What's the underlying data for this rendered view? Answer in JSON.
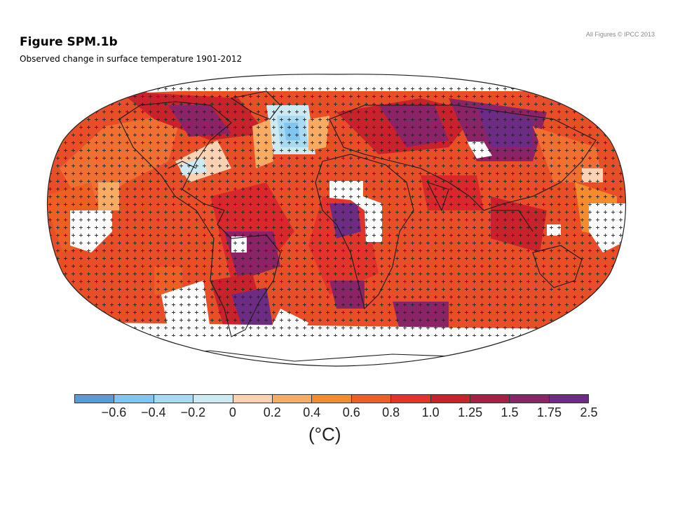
{
  "header": {
    "title": "Figure SPM.1b",
    "subtitle": "Observed change in surface temperature 1901-2012",
    "copyright": "All Figures © IPCC 2013"
  },
  "legend": {
    "unit": "(°C)",
    "tick_labels": [
      "−0.6",
      "−0.4",
      "−0.2",
      "0",
      "0.2",
      "0.4",
      "0.6",
      "0.8",
      "1.0",
      "1.25",
      "1.5",
      "1.75",
      "2.5"
    ],
    "colors": [
      "#5b9bd5",
      "#7fc6f0",
      "#a8daf2",
      "#cde9f2",
      "#fbd3b4",
      "#f8ab63",
      "#f48c2c",
      "#ee5f24",
      "#e2342b",
      "#c8222d",
      "#a81e45",
      "#8a2466",
      "#6c2c83"
    ]
  },
  "map": {
    "projection": "Robinson",
    "background": "#e94f26",
    "no_data_color": "#ffffff",
    "coastline_color": "#1a1a1a",
    "significance_marker": "+"
  }
}
